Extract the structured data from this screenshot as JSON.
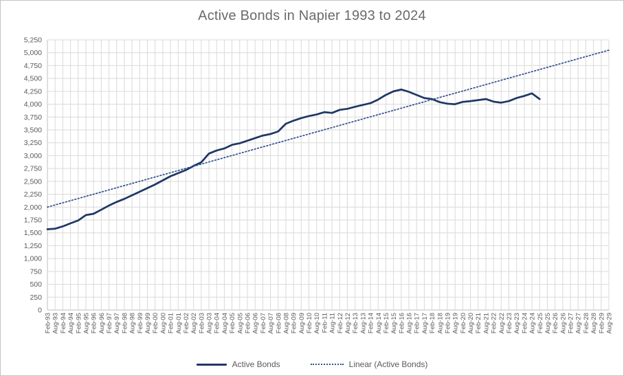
{
  "title": "Active Bonds in Napier 1993 to 2024",
  "colors": {
    "title_text": "#6a6a6a",
    "axis_text": "#595959",
    "gridline": "#d9d9d9",
    "axis_line": "#bfbfbf",
    "series_line": "#1f3864",
    "trend_line": "#2e4d8f",
    "window_border": "#c3c3c3",
    "background": "#ffffff"
  },
  "legend": {
    "items": [
      {
        "label": "Active Bonds",
        "style": "solid",
        "color": "#1f3864"
      },
      {
        "label": "Linear (Active Bonds)",
        "style": "dotted",
        "color": "#2e4d8f"
      }
    ]
  },
  "chart_data": {
    "type": "line",
    "title": "Active Bonds in Napier 1993 to 2024",
    "xlabel": "",
    "ylabel": "",
    "ylim": [
      0,
      5250
    ],
    "ytick_step": 250,
    "grid": true,
    "legend_position": "bottom",
    "categories": [
      "Feb-93",
      "Aug-93",
      "Feb-94",
      "Aug-94",
      "Feb-95",
      "Aug-95",
      "Feb-96",
      "Aug-96",
      "Feb-97",
      "Aug-97",
      "Feb-98",
      "Aug-98",
      "Feb-99",
      "Aug-99",
      "Feb-00",
      "Aug-00",
      "Feb-01",
      "Aug-01",
      "Feb-02",
      "Aug-02",
      "Feb-03",
      "Aug-03",
      "Feb-04",
      "Aug-04",
      "Feb-05",
      "Aug-05",
      "Feb-06",
      "Aug-06",
      "Feb-07",
      "Aug-07",
      "Feb-08",
      "Aug-08",
      "Feb-09",
      "Aug-09",
      "Feb-10",
      "Aug-10",
      "Feb-11",
      "Aug-11",
      "Feb-12",
      "Aug-12",
      "Feb-13",
      "Aug-13",
      "Feb-14",
      "Aug-14",
      "Feb-15",
      "Aug-15",
      "Feb-16",
      "Aug-16",
      "Feb-17",
      "Aug-17",
      "Feb-18",
      "Aug-18",
      "Feb-19",
      "Aug-19",
      "Feb-20",
      "Aug-20",
      "Feb-21",
      "Aug-21",
      "Feb-22",
      "Aug-22",
      "Feb-23",
      "Aug-23",
      "Feb-24",
      "Aug-24",
      "Feb-25",
      "Aug-25",
      "Feb-26",
      "Aug-26",
      "Feb-27",
      "Aug-27",
      "Feb-28",
      "Aug-28",
      "Feb-29",
      "Aug-29"
    ],
    "series": [
      {
        "name": "Active Bonds",
        "style": "solid",
        "color": "#1f3864",
        "start_index": 0,
        "values": [
          1570,
          1580,
          1625,
          1685,
          1740,
          1845,
          1870,
          1950,
          2030,
          2100,
          2160,
          2230,
          2300,
          2370,
          2440,
          2520,
          2600,
          2660,
          2720,
          2800,
          2870,
          3040,
          3100,
          3140,
          3210,
          3240,
          3290,
          3340,
          3390,
          3420,
          3470,
          3620,
          3680,
          3730,
          3770,
          3800,
          3845,
          3830,
          3890,
          3910,
          3950,
          3985,
          4020,
          4090,
          4180,
          4250,
          4285,
          4240,
          4180,
          4120,
          4100,
          4040,
          4010,
          4000,
          4045,
          4060,
          4080,
          4100,
          4050,
          4030,
          4060,
          4120,
          4160,
          4210,
          4100
        ]
      },
      {
        "name": "Linear (Active Bonds)",
        "style": "dotted",
        "color": "#2e4d8f",
        "x_indices": [
          0,
          73
        ],
        "values": [
          2000,
          5050
        ]
      }
    ]
  }
}
